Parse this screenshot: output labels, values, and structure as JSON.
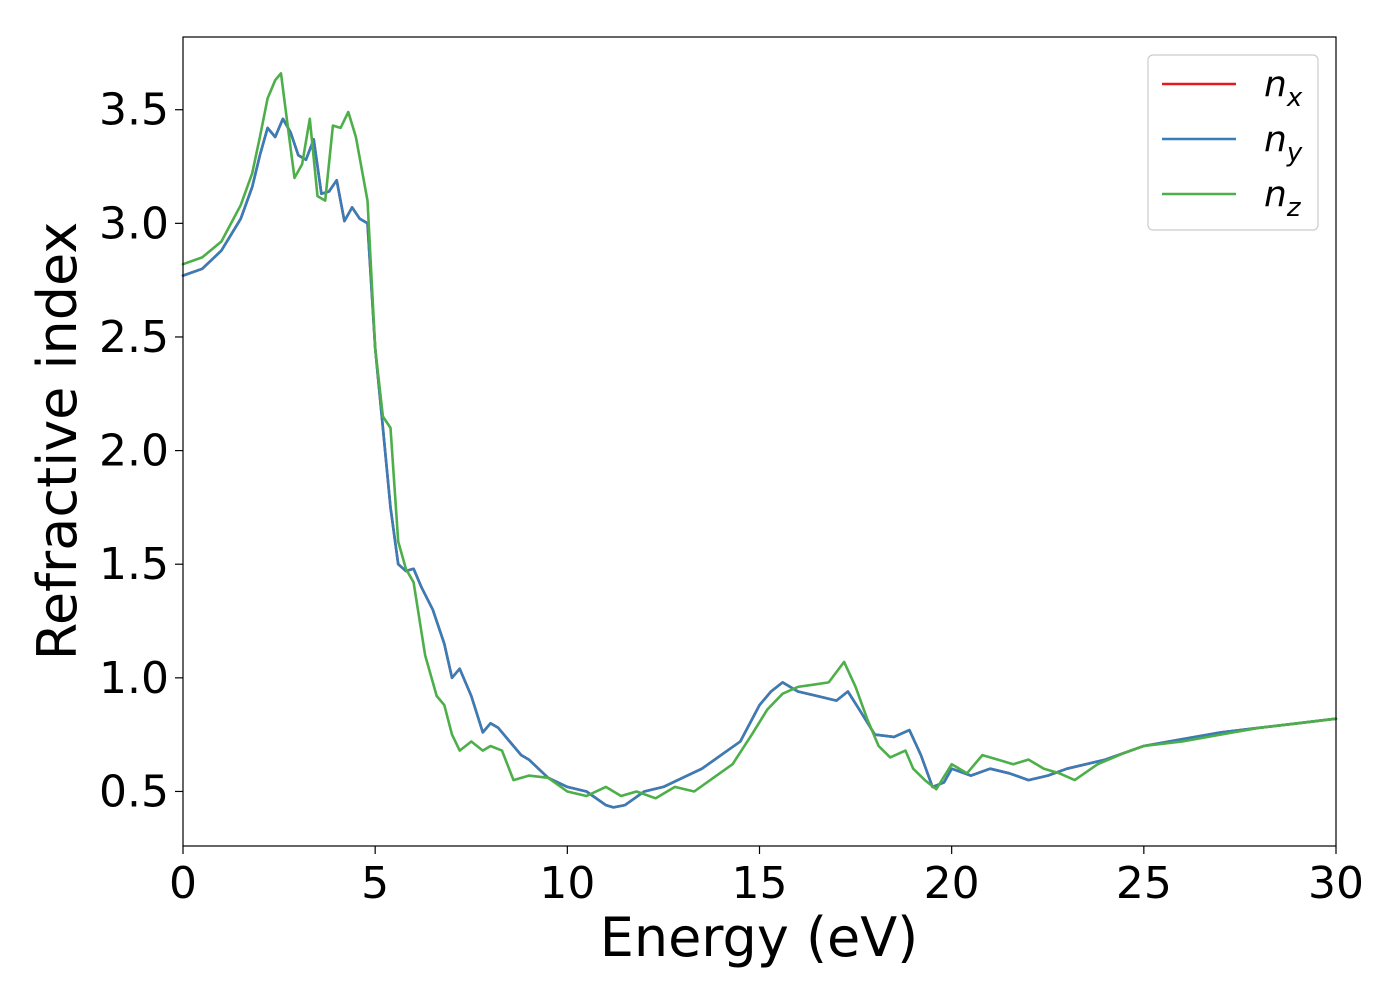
{
  "chart_data": {
    "type": "line",
    "title": "",
    "xlabel": "Energy (eV)",
    "ylabel": "Refractive index",
    "xlim": [
      0,
      30
    ],
    "ylim": [
      0.26,
      3.82
    ],
    "xticks": [
      0,
      5,
      10,
      15,
      20,
      25,
      30
    ],
    "xtick_labels": [
      "0",
      "5",
      "10",
      "15",
      "20",
      "25",
      "30"
    ],
    "yticks": [
      0.5,
      1.0,
      1.5,
      2.0,
      2.5,
      3.0,
      3.5
    ],
    "ytick_labels": [
      "0.5",
      "1.0",
      "1.5",
      "2.0",
      "2.5",
      "3.0",
      "3.5"
    ],
    "grid": false,
    "legend_position": "top-right",
    "series": [
      {
        "name": "n_x",
        "label_base": "n",
        "label_sub": "x",
        "color": "#e41a1c",
        "x": [
          0,
          0.5,
          1.0,
          1.5,
          1.8,
          2.0,
          2.2,
          2.4,
          2.6,
          2.8,
          3.0,
          3.2,
          3.4,
          3.6,
          3.8,
          4.0,
          4.2,
          4.4,
          4.6,
          4.8,
          5.0,
          5.2,
          5.4,
          5.6,
          5.8,
          6.0,
          6.2,
          6.5,
          6.8,
          7.0,
          7.2,
          7.5,
          7.8,
          8.0,
          8.2,
          8.5,
          8.8,
          9.0,
          9.5,
          10.0,
          10.5,
          11.0,
          11.2,
          11.5,
          12.0,
          12.5,
          13.0,
          13.5,
          14.0,
          14.5,
          15.0,
          15.3,
          15.6,
          16.0,
          16.5,
          17.0,
          17.3,
          17.6,
          18.0,
          18.5,
          18.9,
          19.2,
          19.5,
          19.8,
          20.0,
          20.5,
          21.0,
          21.5,
          22.0,
          22.5,
          23.0,
          24.0,
          25.0,
          26.0,
          27.0,
          28.0,
          29.0,
          30.0
        ],
        "y": [
          2.77,
          2.8,
          2.88,
          3.02,
          3.16,
          3.3,
          3.42,
          3.38,
          3.46,
          3.4,
          3.3,
          3.28,
          3.37,
          3.13,
          3.14,
          3.19,
          3.01,
          3.07,
          3.02,
          3.0,
          2.45,
          2.1,
          1.75,
          1.5,
          1.47,
          1.48,
          1.4,
          1.3,
          1.15,
          1.0,
          1.04,
          0.92,
          0.76,
          0.8,
          0.78,
          0.72,
          0.66,
          0.64,
          0.56,
          0.52,
          0.5,
          0.44,
          0.43,
          0.44,
          0.5,
          0.52,
          0.56,
          0.6,
          0.66,
          0.72,
          0.88,
          0.94,
          0.98,
          0.94,
          0.92,
          0.9,
          0.94,
          0.86,
          0.75,
          0.74,
          0.77,
          0.66,
          0.52,
          0.54,
          0.6,
          0.57,
          0.6,
          0.58,
          0.55,
          0.57,
          0.6,
          0.64,
          0.7,
          0.73,
          0.76,
          0.78,
          0.8,
          0.82
        ]
      },
      {
        "name": "n_y",
        "label_base": "n",
        "label_sub": "y",
        "color": "#377eb8",
        "x": [
          0,
          0.5,
          1.0,
          1.5,
          1.8,
          2.0,
          2.2,
          2.4,
          2.6,
          2.8,
          3.0,
          3.2,
          3.4,
          3.6,
          3.8,
          4.0,
          4.2,
          4.4,
          4.6,
          4.8,
          5.0,
          5.2,
          5.4,
          5.6,
          5.8,
          6.0,
          6.2,
          6.5,
          6.8,
          7.0,
          7.2,
          7.5,
          7.8,
          8.0,
          8.2,
          8.5,
          8.8,
          9.0,
          9.5,
          10.0,
          10.5,
          11.0,
          11.2,
          11.5,
          12.0,
          12.5,
          13.0,
          13.5,
          14.0,
          14.5,
          15.0,
          15.3,
          15.6,
          16.0,
          16.5,
          17.0,
          17.3,
          17.6,
          18.0,
          18.5,
          18.9,
          19.2,
          19.5,
          19.8,
          20.0,
          20.5,
          21.0,
          21.5,
          22.0,
          22.5,
          23.0,
          24.0,
          25.0,
          26.0,
          27.0,
          28.0,
          29.0,
          30.0
        ],
        "y": [
          2.77,
          2.8,
          2.88,
          3.02,
          3.16,
          3.3,
          3.42,
          3.38,
          3.46,
          3.4,
          3.3,
          3.28,
          3.37,
          3.13,
          3.14,
          3.19,
          3.01,
          3.07,
          3.02,
          3.0,
          2.45,
          2.1,
          1.75,
          1.5,
          1.47,
          1.48,
          1.4,
          1.3,
          1.15,
          1.0,
          1.04,
          0.92,
          0.76,
          0.8,
          0.78,
          0.72,
          0.66,
          0.64,
          0.56,
          0.52,
          0.5,
          0.44,
          0.43,
          0.44,
          0.5,
          0.52,
          0.56,
          0.6,
          0.66,
          0.72,
          0.88,
          0.94,
          0.98,
          0.94,
          0.92,
          0.9,
          0.94,
          0.86,
          0.75,
          0.74,
          0.77,
          0.66,
          0.52,
          0.54,
          0.6,
          0.57,
          0.6,
          0.58,
          0.55,
          0.57,
          0.6,
          0.64,
          0.7,
          0.73,
          0.76,
          0.78,
          0.8,
          0.82
        ]
      },
      {
        "name": "n_z",
        "label_base": "n",
        "label_sub": "z",
        "color": "#4daf4a",
        "x": [
          0,
          0.5,
          1.0,
          1.5,
          1.8,
          2.0,
          2.2,
          2.4,
          2.55,
          2.7,
          2.9,
          3.1,
          3.3,
          3.5,
          3.7,
          3.9,
          4.1,
          4.3,
          4.5,
          4.8,
          5.0,
          5.2,
          5.4,
          5.6,
          5.8,
          6.0,
          6.3,
          6.6,
          6.8,
          7.0,
          7.2,
          7.5,
          7.8,
          8.0,
          8.3,
          8.6,
          9.0,
          9.5,
          10.0,
          10.5,
          11.0,
          11.4,
          11.8,
          12.3,
          12.8,
          13.3,
          13.8,
          14.3,
          14.8,
          15.2,
          15.6,
          16.0,
          16.4,
          16.8,
          17.2,
          17.5,
          17.8,
          18.1,
          18.4,
          18.8,
          19.0,
          19.3,
          19.6,
          20.0,
          20.4,
          20.8,
          21.2,
          21.6,
          22.0,
          22.4,
          22.8,
          23.2,
          23.8,
          24.5,
          25.0,
          26.0,
          27.0,
          28.0,
          29.0,
          30.0
        ],
        "y": [
          2.82,
          2.85,
          2.92,
          3.08,
          3.22,
          3.38,
          3.55,
          3.63,
          3.66,
          3.46,
          3.2,
          3.26,
          3.46,
          3.12,
          3.1,
          3.43,
          3.42,
          3.49,
          3.38,
          3.1,
          2.45,
          2.15,
          2.1,
          1.6,
          1.48,
          1.42,
          1.1,
          0.92,
          0.88,
          0.75,
          0.68,
          0.72,
          0.68,
          0.7,
          0.68,
          0.55,
          0.57,
          0.56,
          0.5,
          0.48,
          0.52,
          0.48,
          0.5,
          0.47,
          0.52,
          0.5,
          0.56,
          0.62,
          0.75,
          0.86,
          0.93,
          0.96,
          0.97,
          0.98,
          1.07,
          0.96,
          0.82,
          0.7,
          0.65,
          0.68,
          0.6,
          0.55,
          0.51,
          0.62,
          0.58,
          0.66,
          0.64,
          0.62,
          0.64,
          0.6,
          0.58,
          0.55,
          0.62,
          0.67,
          0.7,
          0.72,
          0.75,
          0.78,
          0.8,
          0.82
        ]
      }
    ]
  }
}
